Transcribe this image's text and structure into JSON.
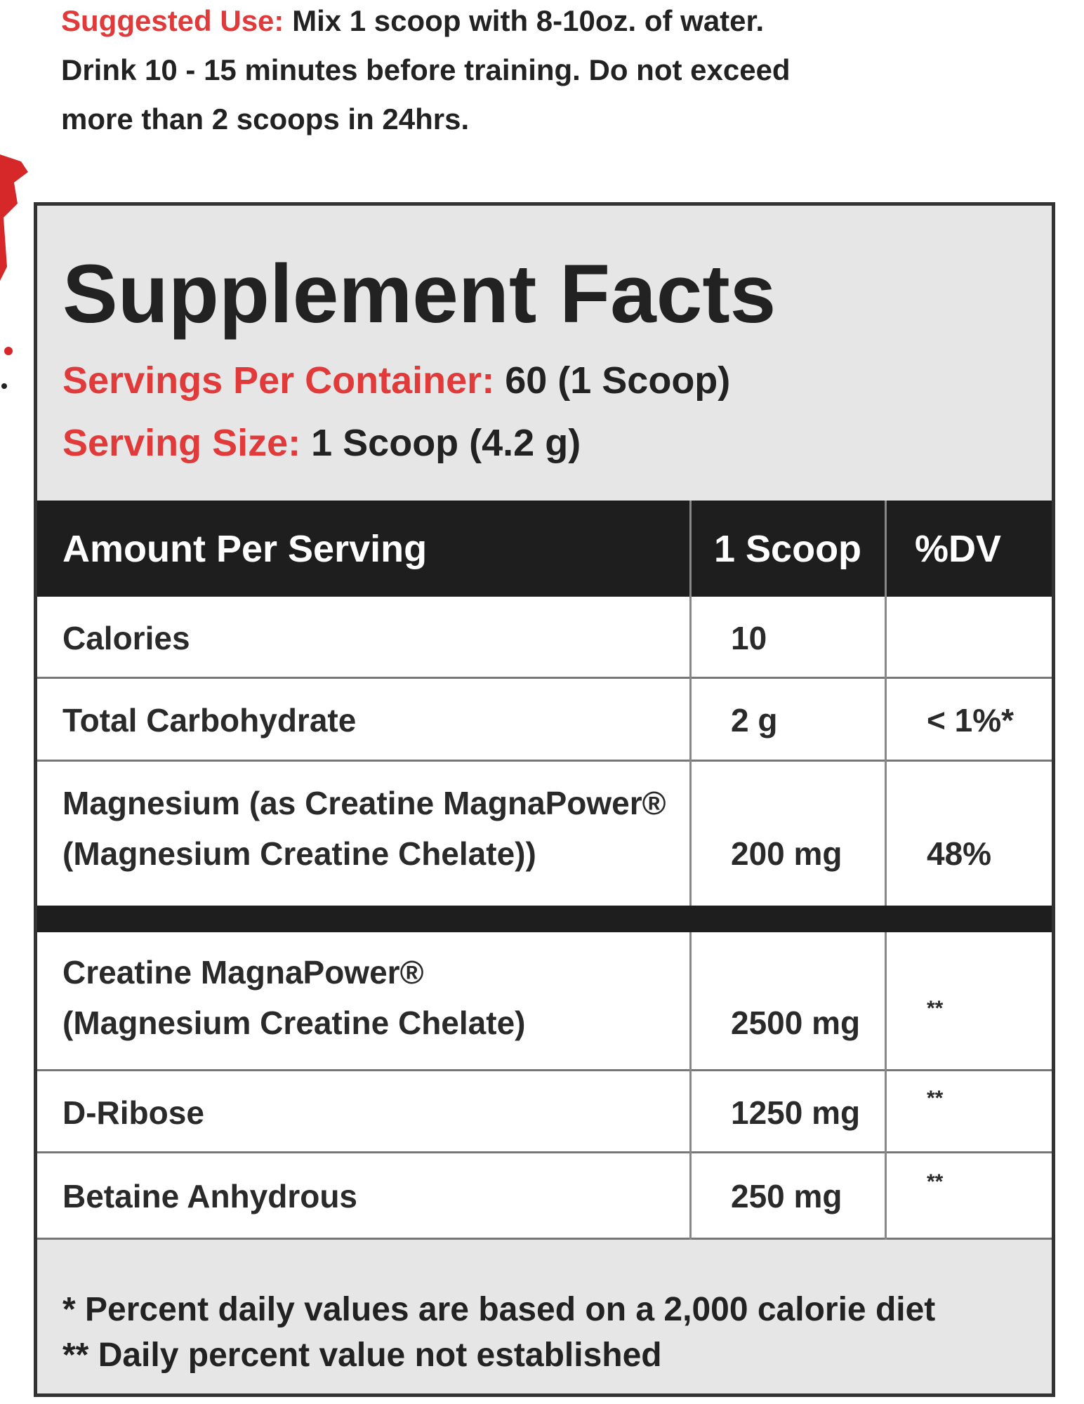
{
  "suggested_use": {
    "label": "Suggested Use:",
    "lines": [
      "Mix 1 scoop with 8-10oz. of water.",
      "Drink 10 - 15 minutes before training. Do not exceed",
      "more than 2 scoops in 24hrs."
    ]
  },
  "panel": {
    "title": "Supplement Facts",
    "servings_per_container": {
      "label": "Servings Per Container:",
      "value": "60 (1 Scoop)"
    },
    "serving_size": {
      "label": "Serving Size:",
      "value": "1 Scoop (4.2 g)"
    }
  },
  "table": {
    "header": [
      "Amount Per Serving",
      "1 Scoop",
      "%DV"
    ],
    "rows": [
      {
        "name": [
          "Calories"
        ],
        "amount": "10"
      },
      {
        "name": [
          "Total Carbohydrate"
        ],
        "amount": "2 g",
        "dv": "< 1%*"
      },
      {
        "name": [
          "Magnesium (as Creatine MagnaPower®",
          "(Magnesium Creatine Chelate))"
        ],
        "amount": "200 mg",
        "dv": "48%"
      },
      {
        "name": [
          "Creatine MagnaPower®",
          "(Magnesium Creatine Chelate)"
        ],
        "amount": "2500 mg",
        "dv": "**"
      },
      {
        "name": [
          "D-Ribose"
        ],
        "amount": "1250 mg",
        "dv": "**"
      },
      {
        "name": [
          "Betaine Anhydrous"
        ],
        "amount": "250 mg",
        "dv": "**"
      }
    ],
    "footnotes": [
      "* Percent daily values are based on a 2,000 calorie diet",
      "** Daily percent value not established"
    ]
  }
}
